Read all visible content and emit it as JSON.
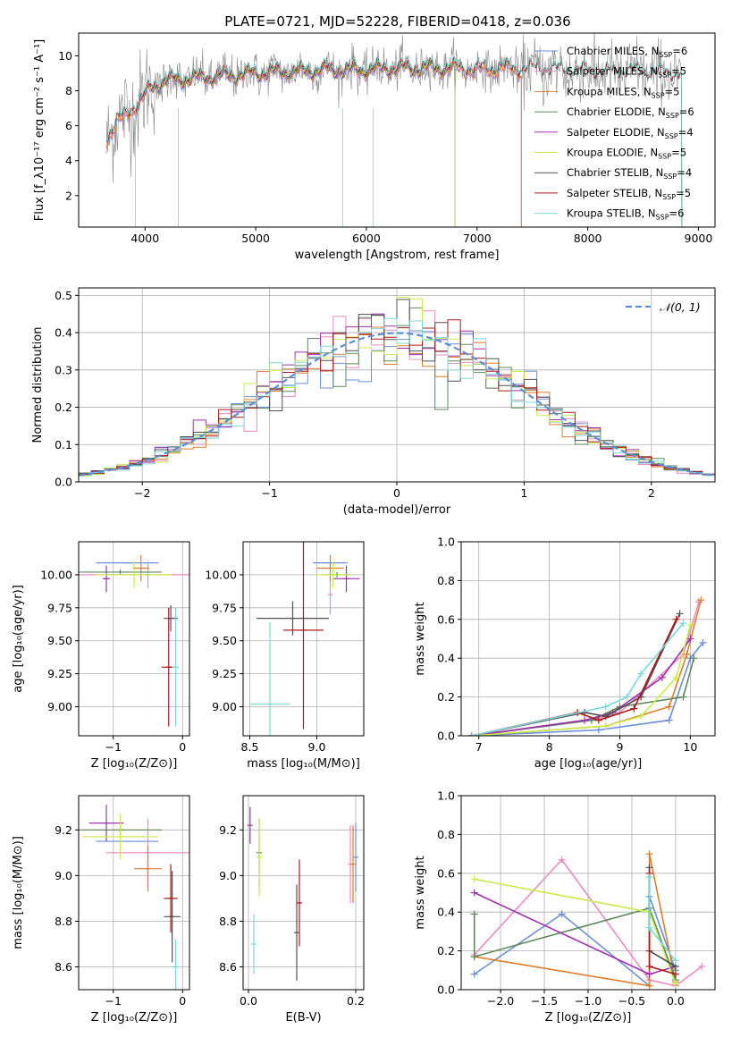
{
  "figure": {
    "title": "PLATE=0721, MJD=52228, FIBERID=0418, z=0.036"
  },
  "colors": {
    "Chabrier MILES": "#6a8fd8",
    "Salpeter MILES": "#e88cc0",
    "Kroupa MILES": "#e07d2a",
    "Chabrier ELODIE": "#5c8a5c",
    "Salpeter ELODIE": "#a030b0",
    "Kroupa ELODIE": "#c8ec4a",
    "Chabrier STELIB": "#505050",
    "Salpeter STELIB": "#b01818",
    "Kroupa STELIB": "#7ad8d8",
    "data": "#888888"
  },
  "chart_data": [
    {
      "id": "spectrum",
      "type": "line",
      "xlabel": "wavelength [Angstrom, rest frame]",
      "ylabel": "Flux [f_λ10⁻¹⁷ erg cm⁻² s⁻¹ A⁻¹]",
      "xlim": [
        3400,
        9150
      ],
      "ylim": [
        0.2,
        11.3
      ],
      "xticks": [
        4000,
        5000,
        6000,
        7000,
        8000,
        9000
      ],
      "yticks": [
        2,
        4,
        6,
        8,
        10
      ],
      "legend_position": "top-right",
      "legend": [
        {
          "label": "Chabrier MILES, N",
          "sub": "SSP",
          "suffix": "=6"
        },
        {
          "label": "Salpeter MILES, N",
          "sub": "SSP",
          "suffix": "=5"
        },
        {
          "label": "Kroupa MILES, N",
          "sub": "SSP",
          "suffix": "=5"
        },
        {
          "label": "Chabrier ELODIE, N",
          "sub": "SSP",
          "suffix": "=6"
        },
        {
          "label": "Salpeter ELODIE, N",
          "sub": "SSP",
          "suffix": "=4"
        },
        {
          "label": "Kroupa ELODIE, N",
          "sub": "SSP",
          "suffix": "=5"
        },
        {
          "label": "Chabrier STELIB, N",
          "sub": "SSP",
          "suffix": "=4"
        },
        {
          "label": "Salpeter STELIB, N",
          "sub": "SSP",
          "suffix": "=5"
        },
        {
          "label": "Kroupa STELIB, N",
          "sub": "SSP",
          "suffix": "=6"
        }
      ],
      "continuum": [
        [
          3650,
          5.2
        ],
        [
          3750,
          6.2
        ],
        [
          3850,
          6.8
        ],
        [
          3950,
          7.3
        ],
        [
          4050,
          8.2
        ],
        [
          4200,
          8.6
        ],
        [
          4400,
          8.7
        ],
        [
          4600,
          8.8
        ],
        [
          4800,
          8.9
        ],
        [
          5000,
          9.0
        ],
        [
          5200,
          9.1
        ],
        [
          5400,
          9.1
        ],
        [
          5600,
          9.2
        ],
        [
          5800,
          9.2
        ],
        [
          6000,
          9.2
        ],
        [
          6200,
          9.3
        ],
        [
          6400,
          9.3
        ],
        [
          6600,
          9.3
        ],
        [
          6800,
          9.3
        ],
        [
          7000,
          9.2
        ],
        [
          7200,
          9.3
        ],
        [
          7400,
          9.2
        ],
        [
          7600,
          9.2
        ],
        [
          7800,
          9.1
        ],
        [
          8000,
          9.1
        ],
        [
          8200,
          9.0
        ],
        [
          8400,
          9.1
        ],
        [
          8600,
          9.0
        ],
        [
          8800,
          8.9
        ],
        [
          8850,
          8.9
        ]
      ],
      "model_ranges": {
        "Chabrier MILES": [
          3650,
          7400
        ],
        "Salpeter MILES": [
          3650,
          7400
        ],
        "Kroupa MILES": [
          3650,
          7400
        ],
        "Chabrier ELODIE": [
          3900,
          6800
        ],
        "Salpeter ELODIE": [
          3900,
          6800
        ],
        "Kroupa ELODIE": [
          3900,
          6800
        ],
        "Chabrier STELIB": [
          3650,
          8850
        ],
        "Salpeter STELIB": [
          3650,
          8850
        ],
        "Kroupa STELIB": [
          3650,
          8850
        ]
      }
    },
    {
      "id": "residual_histogram",
      "type": "step",
      "xlabel": "(data-model)/error",
      "ylabel": "Normed distribution",
      "xlim": [
        -2.5,
        2.5
      ],
      "ylim": [
        0,
        0.52
      ],
      "xticks": [
        -2,
        -1,
        0,
        1,
        2
      ],
      "yticks": [
        0.0,
        0.1,
        0.2,
        0.3,
        0.4,
        0.5
      ],
      "grid": true,
      "bin_width": 0.1,
      "legend_position": "top-right",
      "gaussian_label": "𝒩(0, 1)",
      "gaussian": {
        "mean": 0,
        "sigma": 1
      }
    },
    {
      "id": "age_vs_Z",
      "type": "errorbar",
      "xlabel": "Z [log₁₀(Z/Z⊙)]",
      "ylabel": "age  [log₁₀(age/yr)]",
      "xlim": [
        -1.5,
        0.1
      ],
      "ylim": [
        8.78,
        10.25
      ],
      "xticks": [
        -1,
        0
      ],
      "yticks": [
        9.0,
        9.25,
        9.5,
        9.75,
        10.0
      ],
      "grid": true,
      "points": [
        {
          "model": "Chabrier MILES",
          "x": -0.8,
          "xerr": 0.45,
          "y": 10.09,
          "yerr": 0.0
        },
        {
          "model": "Salpeter MILES",
          "x": -0.5,
          "xerr": 1.1,
          "y": 10.0,
          "yerr": 0.1
        },
        {
          "model": "Kroupa MILES",
          "x": -0.6,
          "xerr": 0.12,
          "y": 10.05,
          "yerr": 0.1
        },
        {
          "model": "Chabrier ELODIE",
          "x": -0.9,
          "xerr": 0.6,
          "y": 10.02,
          "yerr": 0.02
        },
        {
          "model": "Salpeter ELODIE",
          "x": -1.1,
          "xerr": 0.05,
          "y": 9.97,
          "yerr": 0.1
        },
        {
          "model": "Kroupa ELODIE",
          "x": -0.7,
          "xerr": 0.55,
          "y": 10.0,
          "yerr": 0.1
        },
        {
          "model": "Chabrier STELIB",
          "x": -0.17,
          "xerr": 0.1,
          "y": 9.67,
          "yerr": 0.1
        },
        {
          "model": "Salpeter STELIB",
          "x": -0.2,
          "xerr": 0.1,
          "y": 9.3,
          "yerr": 0.45
        },
        {
          "model": "Kroupa STELIB",
          "x": -0.1,
          "xerr": 0.05,
          "y": 9.3,
          "yerr": 0.45
        }
      ]
    },
    {
      "id": "age_vs_mass",
      "type": "errorbar",
      "xlabel": "mass [log₁₀(M/M⊙)]",
      "ylabel": "",
      "xlim": [
        8.45,
        9.35
      ],
      "ylim": [
        8.78,
        10.25
      ],
      "xticks": [
        8.5,
        9.0
      ],
      "yticks": [
        9.0,
        9.25,
        9.5,
        9.75,
        10.0
      ],
      "grid": true,
      "points": [
        {
          "model": "Chabrier MILES",
          "x": 9.1,
          "xerr": 0.13,
          "y": 10.09,
          "yerr": 0.0
        },
        {
          "model": "Salpeter MILES",
          "x": 9.1,
          "xerr": 0.0,
          "y": 9.85,
          "yerr": 0.15
        },
        {
          "model": "Kroupa MILES",
          "x": 9.1,
          "xerr": 0.1,
          "y": 10.05,
          "yerr": 0.1
        },
        {
          "model": "Chabrier ELODIE",
          "x": 9.15,
          "xerr": 0.1,
          "y": 10.0,
          "yerr": 0.02
        },
        {
          "model": "Salpeter ELODIE",
          "x": 9.22,
          "xerr": 0.1,
          "y": 9.97,
          "yerr": 0.1
        },
        {
          "model": "Kroupa ELODIE",
          "x": 9.12,
          "xerr": 0.13,
          "y": 10.0,
          "yerr": 0.1
        },
        {
          "model": "Chabrier STELIB",
          "x": 8.82,
          "xerr": 0.27,
          "y": 9.67,
          "yerr": 0.13
        },
        {
          "model": "Salpeter STELIB",
          "x": 8.9,
          "xerr": 0.15,
          "y": 9.58,
          "yerr": 0.75
        },
        {
          "model": "Kroupa STELIB",
          "x": 8.65,
          "xerr": 0.15,
          "y": 9.02,
          "yerr": 0.62
        }
      ]
    },
    {
      "id": "mass_weight_vs_age",
      "type": "line",
      "xlabel": "age  [log₁₀(age/yr)]",
      "ylabel": "mass weight",
      "xlim": [
        6.75,
        10.35
      ],
      "ylim": [
        0,
        1
      ],
      "xticks": [
        7,
        8,
        9,
        10
      ],
      "yticks": [
        0.0,
        0.2,
        0.4,
        0.6,
        0.8,
        1.0
      ],
      "grid": true,
      "series": [
        {
          "model": "Chabrier MILES",
          "x": [
            6.9,
            8.7,
            9.7,
            10.0,
            10.18
          ],
          "y": [
            0.0,
            0.03,
            0.08,
            0.4,
            0.48
          ]
        },
        {
          "model": "Salpeter MILES",
          "x": [
            6.9,
            8.6,
            9.0,
            9.9,
            10.12
          ],
          "y": [
            0.0,
            0.08,
            0.12,
            0.42,
            0.69
          ]
        },
        {
          "model": "Kroupa MILES",
          "x": [
            6.9,
            8.8,
            9.7,
            9.95,
            10.15
          ],
          "y": [
            0.0,
            0.05,
            0.15,
            0.42,
            0.7
          ]
        },
        {
          "model": "Chabrier ELODIE",
          "x": [
            6.9,
            8.6,
            9.0,
            9.9,
            10.05
          ],
          "y": [
            0.0,
            0.08,
            0.15,
            0.2,
            0.4
          ]
        },
        {
          "model": "Salpeter ELODIE",
          "x": [
            6.9,
            8.5,
            8.9,
            9.6,
            10.0
          ],
          "y": [
            0.0,
            0.08,
            0.12,
            0.3,
            0.5
          ]
        },
        {
          "model": "Kroupa ELODIE",
          "x": [
            6.9,
            8.8,
            9.3,
            9.8,
            10.0
          ],
          "y": [
            0.0,
            0.05,
            0.1,
            0.3,
            0.57
          ]
        },
        {
          "model": "Chabrier STELIB",
          "x": [
            6.9,
            8.5,
            8.8,
            9.3,
            9.85
          ],
          "y": [
            0.0,
            0.12,
            0.1,
            0.2,
            0.63
          ]
        },
        {
          "model": "Salpeter STELIB",
          "x": [
            6.9,
            8.4,
            8.7,
            9.2,
            9.8
          ],
          "y": [
            0.0,
            0.12,
            0.08,
            0.14,
            0.6
          ]
        },
        {
          "model": "Kroupa STELIB",
          "x": [
            6.9,
            8.8,
            9.1,
            9.3,
            9.9
          ],
          "y": [
            0.0,
            0.15,
            0.2,
            0.32,
            0.58
          ]
        }
      ]
    },
    {
      "id": "mass_vs_Z",
      "type": "errorbar",
      "xlabel": "Z [log₁₀(Z/Z⊙)]",
      "ylabel": "mass [log₁₀(M/M⊙)]",
      "xlim": [
        -1.5,
        0.1
      ],
      "ylim": [
        8.5,
        9.35
      ],
      "xticks": [
        -1,
        0
      ],
      "yticks": [
        8.6,
        8.8,
        9.0,
        9.2
      ],
      "grid": true,
      "points": [
        {
          "model": "Chabrier MILES",
          "x": -0.8,
          "xerr": 0.45,
          "y": 9.15,
          "yerr": 0.0
        },
        {
          "model": "Salpeter MILES",
          "x": -0.5,
          "xerr": 0.6,
          "y": 9.1,
          "yerr": 0.15
        },
        {
          "model": "Kroupa MILES",
          "x": -0.5,
          "xerr": 0.2,
          "y": 9.03,
          "yerr": 0.1
        },
        {
          "model": "Chabrier ELODIE",
          "x": -0.9,
          "xerr": 0.6,
          "y": 9.2,
          "yerr": 0.02
        },
        {
          "model": "Salpeter ELODIE",
          "x": -1.1,
          "xerr": 0.25,
          "y": 9.23,
          "yerr": 0.08
        },
        {
          "model": "Kroupa ELODIE",
          "x": -0.9,
          "xerr": 0.55,
          "y": 9.17,
          "yerr": 0.1
        },
        {
          "model": "Chabrier STELIB",
          "x": -0.15,
          "xerr": 0.12,
          "y": 8.82,
          "yerr": 0.2
        },
        {
          "model": "Salpeter STELIB",
          "x": -0.17,
          "xerr": 0.1,
          "y": 8.9,
          "yerr": 0.15
        },
        {
          "model": "Kroupa STELIB",
          "x": -0.1,
          "xerr": 0.05,
          "y": 8.6,
          "yerr": 0.12
        }
      ]
    },
    {
      "id": "mass_vs_ebv",
      "type": "errorbar",
      "xlabel": "E(B-V)",
      "ylabel": "",
      "xlim": [
        -0.01,
        0.215
      ],
      "ylim": [
        8.5,
        9.35
      ],
      "xticks": [
        0.0,
        0.2
      ],
      "yticks": [
        8.6,
        8.8,
        9.0,
        9.2
      ],
      "grid": true,
      "points": [
        {
          "model": "Chabrier MILES",
          "x": 0.2,
          "xerr": 0.0,
          "y": 9.08,
          "yerr": 0.15
        },
        {
          "model": "Salpeter MILES",
          "x": 0.19,
          "xerr": 0.0,
          "y": 9.05,
          "yerr": 0.17
        },
        {
          "model": "Kroupa MILES",
          "x": 0.195,
          "xerr": 0.0,
          "y": 9.05,
          "yerr": 0.17
        },
        {
          "model": "Chabrier ELODIE",
          "x": 0.02,
          "xerr": 0.0,
          "y": 9.1,
          "yerr": 0.15
        },
        {
          "model": "Salpeter ELODIE",
          "x": 0.003,
          "xerr": 0.0,
          "y": 9.22,
          "yerr": 0.08
        },
        {
          "model": "Kroupa ELODIE",
          "x": 0.02,
          "xerr": 0.0,
          "y": 9.08,
          "yerr": 0.17
        },
        {
          "model": "Chabrier STELIB",
          "x": 0.09,
          "xerr": 0.0,
          "y": 8.75,
          "yerr": 0.21
        },
        {
          "model": "Salpeter STELIB",
          "x": 0.095,
          "xerr": 0.0,
          "y": 8.88,
          "yerr": 0.19
        },
        {
          "model": "Kroupa STELIB",
          "x": 0.01,
          "xerr": 0.0,
          "y": 8.7,
          "yerr": 0.13
        }
      ]
    },
    {
      "id": "mass_weight_vs_Z",
      "type": "line",
      "xlabel": "Z [log₁₀(Z/Z⊙)]",
      "ylabel": "mass weight",
      "xlim": [
        -2.45,
        0.45
      ],
      "ylim": [
        0,
        1
      ],
      "xticks": [
        -2.0,
        -1.5,
        -1.0,
        -0.5,
        0.0
      ],
      "yticks": [
        0.0,
        0.2,
        0.4,
        0.6,
        0.8,
        1.0
      ],
      "grid": true,
      "series": [
        {
          "model": "Chabrier MILES",
          "x": [
            -2.3,
            -1.3,
            -0.3,
            -0.3,
            0.0
          ],
          "y": [
            0.08,
            0.39,
            0.02,
            0.48,
            0.1
          ]
        },
        {
          "model": "Salpeter MILES",
          "x": [
            -2.3,
            -1.3,
            -0.3,
            0.0,
            0.3
          ],
          "y": [
            0.18,
            0.67,
            0.05,
            0.02,
            0.12
          ]
        },
        {
          "model": "Kroupa MILES",
          "x": [
            -2.3,
            -0.3,
            -0.3,
            0.0
          ],
          "y": [
            0.17,
            0.02,
            0.7,
            0.04
          ]
        },
        {
          "model": "Chabrier ELODIE",
          "x": [
            -2.3,
            -2.3,
            -0.3,
            0.0
          ],
          "y": [
            0.39,
            0.17,
            0.42,
            0.05
          ]
        },
        {
          "model": "Salpeter ELODIE",
          "x": [
            -2.3,
            -0.3,
            0.0
          ],
          "y": [
            0.5,
            0.08,
            0.12
          ]
        },
        {
          "model": "Kroupa ELODIE",
          "x": [
            -2.3,
            -0.3,
            0.0
          ],
          "y": [
            0.57,
            0.4,
            0.03
          ]
        },
        {
          "model": "Chabrier STELIB",
          "x": [
            -0.3,
            -0.3,
            0.0
          ],
          "y": [
            0.63,
            0.2,
            0.12
          ]
        },
        {
          "model": "Salpeter STELIB",
          "x": [
            -0.3,
            -0.3,
            0.0
          ],
          "y": [
            0.6,
            0.12,
            0.08
          ]
        },
        {
          "model": "Kroupa STELIB",
          "x": [
            -0.3,
            -0.3,
            0.0
          ],
          "y": [
            0.58,
            0.32,
            0.15
          ]
        }
      ]
    }
  ]
}
